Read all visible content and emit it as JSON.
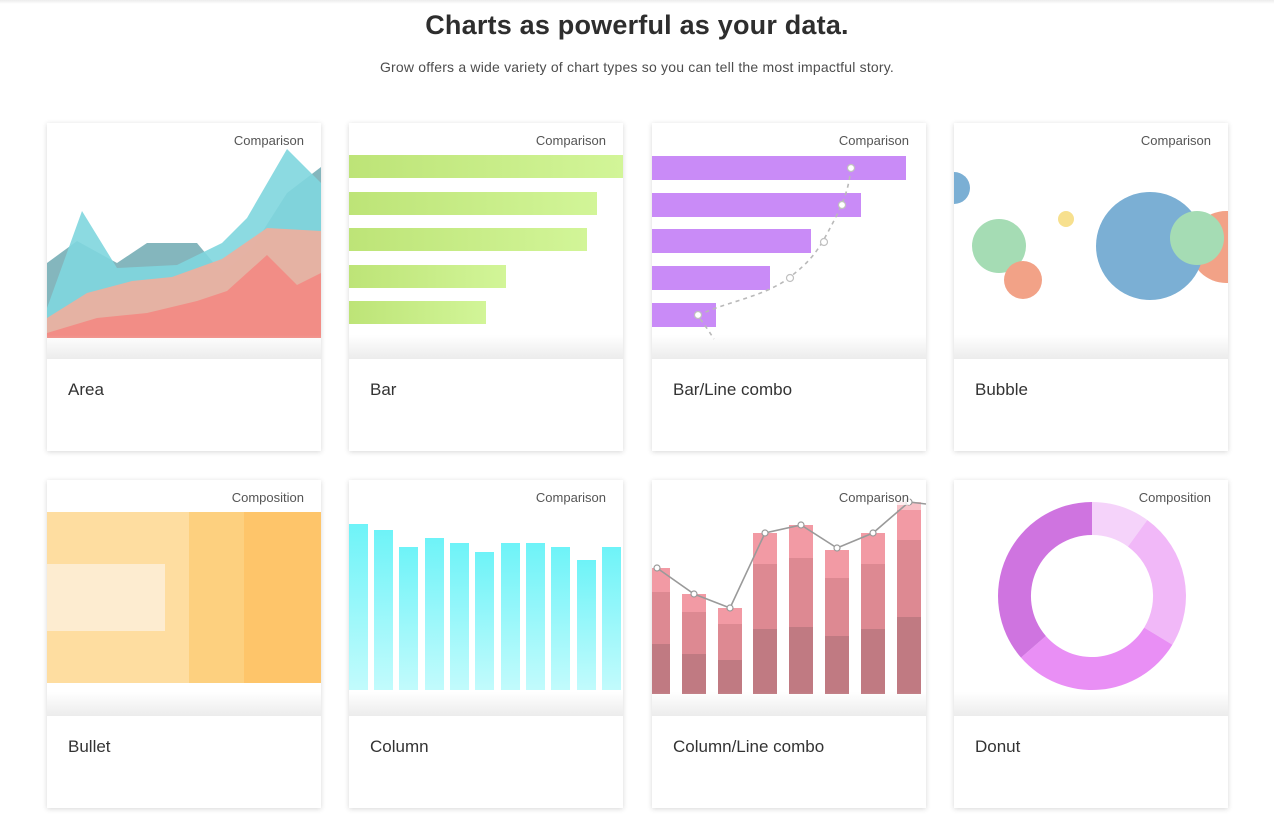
{
  "header": {
    "title": "Charts as powerful as your data.",
    "subtitle": "Grow offers a wide variety of chart types so you can tell the most impactful story."
  },
  "cards": [
    {
      "title": "Area",
      "category": "Comparison",
      "icon": "area-chart-illustration"
    },
    {
      "title": "Bar",
      "category": "Comparison",
      "icon": "bar-chart-illustration"
    },
    {
      "title": "Bar/Line combo",
      "category": "Comparison",
      "icon": "bar-line-combo-illustration"
    },
    {
      "title": "Bubble",
      "category": "Comparison",
      "icon": "bubble-chart-illustration"
    },
    {
      "title": "Bullet",
      "category": "Composition",
      "icon": "bullet-chart-illustration"
    },
    {
      "title": "Column",
      "category": "Comparison",
      "icon": "column-chart-illustration"
    },
    {
      "title": "Column/Line combo",
      "category": "Comparison",
      "icon": "column-line-combo-illustration"
    },
    {
      "title": "Donut",
      "category": "Composition",
      "icon": "donut-chart-illustration"
    }
  ],
  "colors": {
    "area_teal": "#7fd6de",
    "area_salmon": "#f28d86",
    "bar_green": "#c6ee86",
    "bar_purple": "#c98bf7",
    "bubble_blue": "#7bafd4",
    "bullet_orange": "#fec56a",
    "column_cyan": "#6ef3f8",
    "combo_red": "#e07b87",
    "donut_violet": "#cf74e0"
  }
}
